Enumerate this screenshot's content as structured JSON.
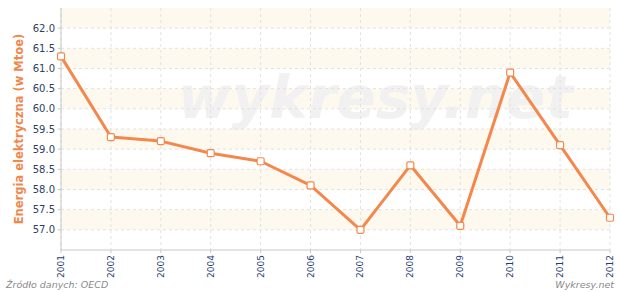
{
  "chart_data": {
    "type": "line",
    "y_label": "Energia elektryczna (w Mtoe)",
    "categories": [
      "2001",
      "2002",
      "2003",
      "2004",
      "2005",
      "2006",
      "2007",
      "2008",
      "2009",
      "2010",
      "2011",
      "2012"
    ],
    "values": [
      61.3,
      59.3,
      59.2,
      58.9,
      58.7,
      58.1,
      57.0,
      58.6,
      57.1,
      60.9,
      59.1,
      57.3
    ],
    "color": "#f4874b",
    "marker": "square",
    "ylim": [
      56.5,
      62.5
    ],
    "yticks": [
      {
        "value": 57,
        "label": "57.0"
      },
      57.5,
      {
        "value": 58,
        "label": "58.0"
      },
      58.5,
      {
        "value": 59,
        "label": "59.0"
      },
      59.5,
      {
        "value": 60,
        "label": "60.0"
      },
      60.5,
      {
        "value": 61,
        "label": "61.0"
      },
      61.5,
      {
        "value": 62,
        "label": "62.0"
      }
    ],
    "grid": true,
    "source": "Źródło danych: OECD",
    "credit": "Wykresy.net",
    "watermark": "wykresy.net"
  }
}
